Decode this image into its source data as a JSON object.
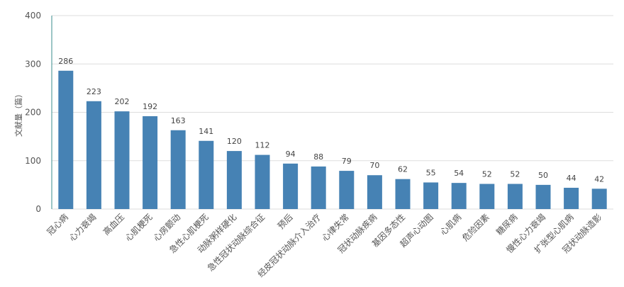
{
  "chart_data": {
    "type": "bar",
    "title": "",
    "xlabel": "",
    "ylabel": "文献量（篇）",
    "ylim": [
      0,
      400
    ],
    "yticks": [
      0,
      100,
      200,
      300,
      400
    ],
    "grid": true,
    "categories": [
      "冠心病",
      "心力衰竭",
      "高血压",
      "心肌梗死",
      "心房颤动",
      "急性心肌梗死",
      "动脉粥样硬化",
      "急性冠状动脉综合征",
      "预后",
      "经皮冠状动脉介入治疗",
      "心律失常",
      "冠状动脉疾病",
      "基因多态性",
      "超声心动图",
      "心肌病",
      "危险因素",
      "糖尿病",
      "慢性心力衰竭",
      "扩张型心肌病",
      "冠状动脉造影"
    ],
    "values": [
      286,
      223,
      202,
      192,
      163,
      141,
      120,
      112,
      94,
      88,
      79,
      70,
      62,
      55,
      54,
      52,
      52,
      50,
      44,
      42
    ],
    "colors": {
      "bar": "#4682b4",
      "grid": "#dddddd",
      "axis": "#3a8c8c"
    }
  }
}
